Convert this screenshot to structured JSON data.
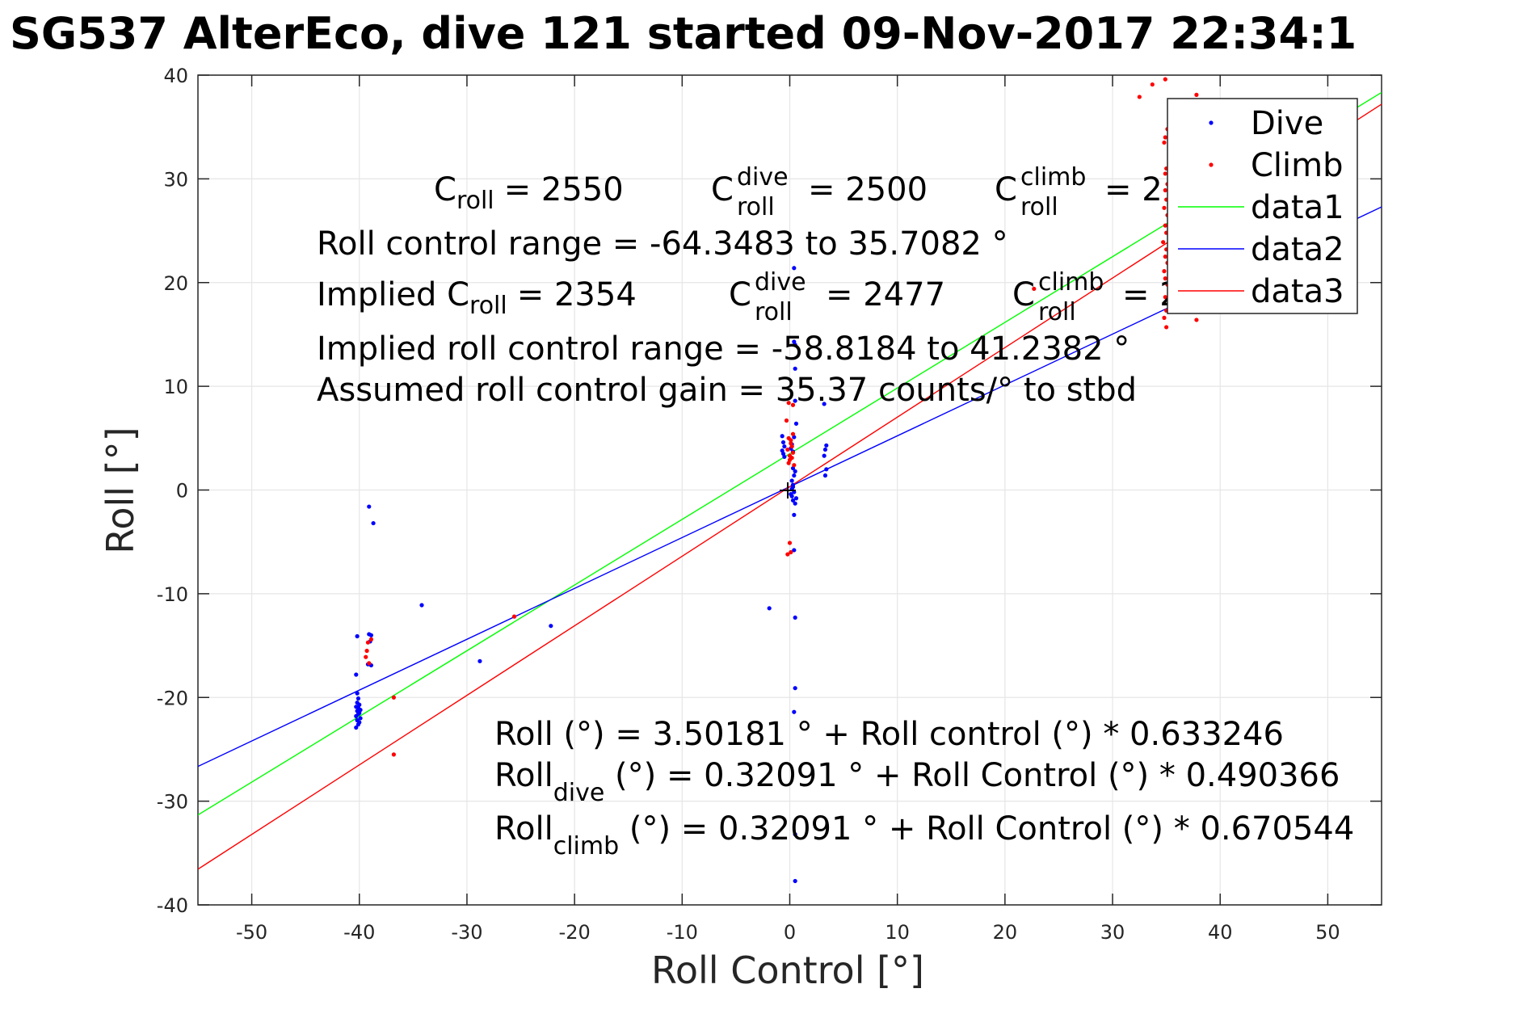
{
  "chart_data": {
    "type": "scatter",
    "title": "SG537 AlterEco, dive 121 started 09-Nov-2017 22:34:1",
    "xlabel": "Roll Control [°]",
    "ylabel": "Roll [°]",
    "xlim": [
      -55,
      55
    ],
    "ylim": [
      -40,
      40
    ],
    "xticks": [
      -50,
      -40,
      -30,
      -20,
      -10,
      0,
      10,
      20,
      30,
      40,
      50
    ],
    "yticks": [
      -40,
      -30,
      -20,
      -10,
      0,
      10,
      20,
      30,
      40
    ],
    "grid": true,
    "legend_position": "top-right",
    "legend": [
      "Dive",
      "Climb",
      "data1",
      "data2",
      "data3"
    ],
    "colors": {
      "dive": "#0000ff",
      "climb": "#ff0000",
      "data1": "#00ff00",
      "data2": "#0000ff",
      "data3": "#ff0000"
    },
    "series": [
      {
        "name": "Dive",
        "kind": "points",
        "color": "#0000ff",
        "points": [
          [
            -40.2,
            -14.1
          ],
          [
            -40.3,
            -17.8
          ],
          [
            -40.2,
            -19.6
          ],
          [
            -40.1,
            -20.1
          ],
          [
            -40.2,
            -20.5
          ],
          [
            -40.0,
            -20.7
          ],
          [
            -40.3,
            -20.9
          ],
          [
            -40.1,
            -21.0
          ],
          [
            -39.9,
            -21.2
          ],
          [
            -40.2,
            -21.3
          ],
          [
            -40.0,
            -21.5
          ],
          [
            -40.1,
            -21.6
          ],
          [
            -40.3,
            -21.8
          ],
          [
            -39.9,
            -22.0
          ],
          [
            -40.2,
            -22.2
          ],
          [
            -40.0,
            -22.4
          ],
          [
            -40.1,
            -22.6
          ],
          [
            -40.3,
            -22.9
          ],
          [
            -39.1,
            -13.9
          ],
          [
            -38.9,
            -14.0
          ],
          [
            -39.0,
            -14.6
          ],
          [
            -39.2,
            -16.8
          ],
          [
            -38.9,
            -16.9
          ],
          [
            -39.1,
            -1.6
          ],
          [
            -38.7,
            -3.2
          ],
          [
            -34.2,
            -11.1
          ],
          [
            -28.8,
            -16.5
          ],
          [
            -22.2,
            -13.1
          ],
          [
            -1.9,
            -11.4
          ],
          [
            -0.6,
            3.5
          ],
          [
            -0.7,
            3.8
          ],
          [
            -0.5,
            4.2
          ],
          [
            -0.6,
            4.6
          ],
          [
            -0.7,
            5.2
          ],
          [
            -0.5,
            3.2
          ],
          [
            0.1,
            4.0
          ],
          [
            0.2,
            4.4
          ],
          [
            0.3,
            3.7
          ],
          [
            0.4,
            5.1
          ],
          [
            0.6,
            6.4
          ],
          [
            0.3,
            2.1
          ],
          [
            0.4,
            1.4
          ],
          [
            0.2,
            0.9
          ],
          [
            0.3,
            0.3
          ],
          [
            0.4,
            -0.2
          ],
          [
            0.2,
            -0.6
          ],
          [
            0.3,
            -1.0
          ],
          [
            0.5,
            -1.3
          ],
          [
            0.1,
            -0.4
          ],
          [
            0.2,
            0.1
          ],
          [
            0.4,
            -2.4
          ],
          [
            0.3,
            0.5
          ],
          [
            0.5,
            1.8
          ],
          [
            0.6,
            -0.8
          ],
          [
            0.4,
            -5.8
          ],
          [
            0.5,
            -12.3
          ],
          [
            0.5,
            -19.1
          ],
          [
            0.4,
            -21.4
          ],
          [
            0.5,
            -33.2
          ],
          [
            0.5,
            -37.7
          ],
          [
            0.5,
            11.7
          ],
          [
            0.4,
            14.3
          ],
          [
            0.5,
            14.0
          ],
          [
            0.4,
            21.4
          ],
          [
            0.5,
            8.6
          ],
          [
            3.3,
            1.4
          ],
          [
            3.4,
            2.0
          ],
          [
            3.2,
            3.3
          ],
          [
            3.3,
            3.9
          ],
          [
            3.4,
            4.3
          ],
          [
            3.2,
            8.3
          ]
        ]
      },
      {
        "name": "Climb",
        "kind": "points",
        "color": "#ff0000",
        "points": [
          [
            -39.2,
            -14.7
          ],
          [
            -39.3,
            -15.5
          ],
          [
            -39.4,
            -16.1
          ],
          [
            -39.1,
            -16.7
          ],
          [
            -38.9,
            -14.4
          ],
          [
            -36.8,
            -20.0
          ],
          [
            -36.8,
            -25.5
          ],
          [
            -25.6,
            -12.2
          ],
          [
            -0.1,
            2.6
          ],
          [
            0.0,
            3.3
          ],
          [
            -0.2,
            3.9
          ],
          [
            0.1,
            4.5
          ],
          [
            -0.1,
            5.0
          ],
          [
            0.2,
            4.2
          ],
          [
            0.3,
            3.6
          ],
          [
            0.0,
            2.9
          ],
          [
            -0.3,
            6.7
          ],
          [
            0.3,
            5.4
          ],
          [
            0.1,
            4.8
          ],
          [
            0.2,
            3.1
          ],
          [
            0.4,
            2.4
          ],
          [
            -0.1,
            8.4
          ],
          [
            0.3,
            8.2
          ],
          [
            0.0,
            -5.1
          ],
          [
            0.1,
            -6.0
          ],
          [
            -0.2,
            -6.2
          ],
          [
            22.7,
            19.4
          ],
          [
            32.5,
            37.9
          ],
          [
            33.7,
            39.1
          ],
          [
            34.9,
            39.6
          ],
          [
            34.9,
            34.0
          ],
          [
            35.1,
            34.8
          ],
          [
            34.8,
            33.5
          ],
          [
            35.0,
            31.0
          ],
          [
            34.9,
            30.5
          ],
          [
            35.1,
            29.5
          ],
          [
            34.9,
            28.9
          ],
          [
            35.0,
            28.0
          ],
          [
            34.8,
            27.2
          ],
          [
            35.1,
            26.5
          ],
          [
            34.9,
            25.5
          ],
          [
            35.0,
            24.8
          ],
          [
            34.7,
            23.9
          ],
          [
            35.0,
            23.2
          ],
          [
            34.9,
            22.5
          ],
          [
            35.1,
            21.9
          ],
          [
            34.8,
            21.1
          ],
          [
            34.9,
            20.4
          ],
          [
            35.1,
            19.8
          ],
          [
            34.9,
            18.6
          ],
          [
            35.0,
            17.3
          ],
          [
            34.8,
            16.6
          ],
          [
            35.0,
            15.7
          ],
          [
            37.8,
            16.4
          ],
          [
            37.8,
            38.1
          ]
        ]
      },
      {
        "name": "data1",
        "kind": "line",
        "color": "#00ff00",
        "intercept": 3.50181,
        "slope": 0.633246
      },
      {
        "name": "data2",
        "kind": "line",
        "color": "#0000ff",
        "intercept": 0.32091,
        "slope": 0.490366
      },
      {
        "name": "data3",
        "kind": "line",
        "color": "#ff0000",
        "intercept": 0.32091,
        "slope": 0.670544
      }
    ],
    "annotations": {
      "croll_line": {
        "c_roll": "C",
        "c_roll_sub": "roll",
        "c_roll_val": "= 2550",
        "c_dive": "C",
        "c_dive_sup": "dive",
        "c_dive_sub": "roll",
        "c_dive_val": "= 2500",
        "c_climb": "C",
        "c_climb_sup": "climb",
        "c_climb_sub": "roll",
        "c_climb_val": "= 2"
      },
      "roll_control_range": "Roll control range = -64.3483 to 35.7082 °",
      "implied_line": {
        "prefix": "Implied C",
        "prefix_sub": "roll",
        "prefix_val": "= 2354",
        "c_dive": "C",
        "c_dive_sup": "dive",
        "c_dive_sub": "roll",
        "c_dive_val": "= 2477",
        "c_climb": "C",
        "c_climb_sup": "climb",
        "c_climb_sub": "roll",
        "c_climb_val": "= 2"
      },
      "implied_range": "Implied roll control range = -58.8184 to 41.2382 °",
      "assumed_gain": "Assumed roll control gain = 35.37 counts/° to stbd",
      "fit_all": "Roll (°) = 3.50181 ° + Roll control (°) * 0.633246",
      "fit_dive": {
        "a": "Roll",
        "sub": "dive",
        "b": " (°) = 0.32091 ° + Roll Control (°) * 0.490366"
      },
      "fit_climb": {
        "a": "Roll",
        "sub": "climb",
        "b": " (°) = 0.32091 ° + Roll Control (°) * 0.670544"
      }
    }
  }
}
